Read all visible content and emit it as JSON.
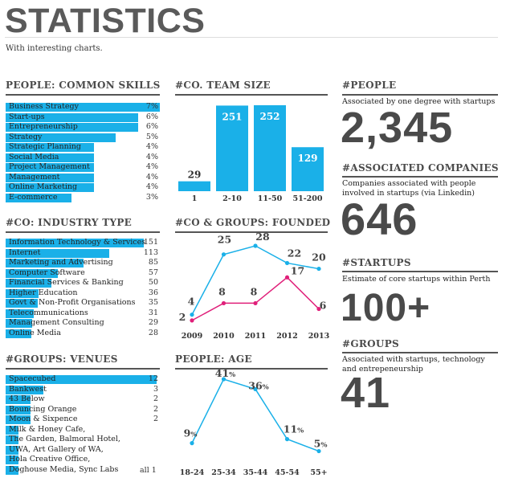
{
  "header": {
    "title": "STATISTICS",
    "subtitle": "With interesting charts."
  },
  "colors": {
    "accent": "#1ab0e8",
    "secondary": "#e0207a",
    "text": "#4a4a4a"
  },
  "chart_data": [
    {
      "type": "bar",
      "orientation": "horizontal",
      "title": "PEOPLE: COMMON SKILLS",
      "categories": [
        "Business Strategy",
        "Start-ups",
        "Entrepreneurship",
        "Strategy",
        "Strategic Planning",
        "Social Media",
        "Project Management",
        "Management",
        "Online Marketing",
        "E-commerce"
      ],
      "values": [
        7,
        6,
        6,
        5,
        4,
        4,
        4,
        4,
        4,
        3
      ],
      "value_labels": [
        "7%",
        "6%",
        "6%",
        "5%",
        "4%",
        "4%",
        "4%",
        "4%",
        "4%",
        "3%"
      ],
      "max": 7
    },
    {
      "type": "bar",
      "title": "#CO. TEAM SIZE",
      "categories": [
        "1",
        "2-10",
        "11-50",
        "51-200"
      ],
      "values": [
        29,
        251,
        252,
        129
      ],
      "value_labels": [
        "29",
        "251",
        "252",
        "129"
      ],
      "ylim": [
        0,
        252
      ]
    },
    {
      "type": "bar",
      "orientation": "horizontal",
      "title": "#CO: INDUSTRY TYPE",
      "categories": [
        "Information Technology & Services",
        "Internet",
        "Marketing and Advertising",
        "Computer Software",
        "Financial Services & Banking",
        "Higher Education",
        "Govt & Non-Profit Organisations",
        "Telecommunications",
        "Management Consulting",
        "Online Media"
      ],
      "values": [
        151,
        113,
        85,
        57,
        50,
        36,
        35,
        31,
        29,
        28
      ],
      "value_labels": [
        "151",
        "113",
        "85",
        "57",
        "50",
        "36",
        "35",
        "31",
        "29",
        "28"
      ],
      "max": 151
    },
    {
      "type": "line",
      "title": "#CO & GROUPS: FOUNDED",
      "x": [
        "2009",
        "2010",
        "2011",
        "2012",
        "2013"
      ],
      "series": [
        {
          "values": [
            4,
            25,
            28,
            22,
            20
          ],
          "labels": [
            "4",
            "25",
            "28",
            "22",
            "20"
          ]
        },
        {
          "values": [
            2,
            8,
            8,
            17,
            6
          ],
          "labels": [
            "2",
            "8",
            "8",
            "17",
            "6"
          ]
        }
      ],
      "ylim": [
        0,
        28
      ]
    },
    {
      "type": "bar",
      "orientation": "horizontal",
      "title": "#GROUPS: VENUES",
      "categories": [
        "Spacecubed",
        "Bankwest",
        "43 Below",
        "Bouncing Orange",
        "Moon & Sixpence"
      ],
      "values": [
        12,
        3,
        2,
        2,
        2
      ],
      "value_labels": [
        "12",
        "3",
        "2",
        "2",
        "2"
      ],
      "max": 12,
      "extra_lines": [
        "Milk & Honey Cafe,",
        "The Garden, Balmoral Hotel,",
        "UWA, Art Gallery of WA,",
        "Hola Creative Office,",
        "Doghouse Media, Sync Labs"
      ],
      "extra_value": "all 1",
      "extra_values_each": 1
    },
    {
      "type": "line",
      "title": "PEOPLE: AGE",
      "x": [
        "18-24",
        "25-34",
        "35-44",
        "45-54",
        "55+"
      ],
      "series": [
        {
          "values": [
            9,
            41,
            36,
            11,
            5
          ],
          "labels": [
            "9",
            "41",
            "36",
            "11",
            "5"
          ],
          "suffix": "%"
        }
      ],
      "ylim": [
        0,
        41
      ]
    }
  ],
  "stats": [
    {
      "heading": "#PEOPLE",
      "description": "Associated by one degree with startups",
      "number": "2,345"
    },
    {
      "heading": "#ASSOCIATED COMPANIES",
      "description": "Companies associated with people involved in startups (via Linkedin)",
      "number": "646"
    },
    {
      "heading": "#STARTUPS",
      "description": "Estimate of core startups within Perth",
      "number": "100+"
    },
    {
      "heading": "#GROUPS",
      "description": "Associated with startups, technology and entrepeneurship",
      "number": "41"
    }
  ]
}
